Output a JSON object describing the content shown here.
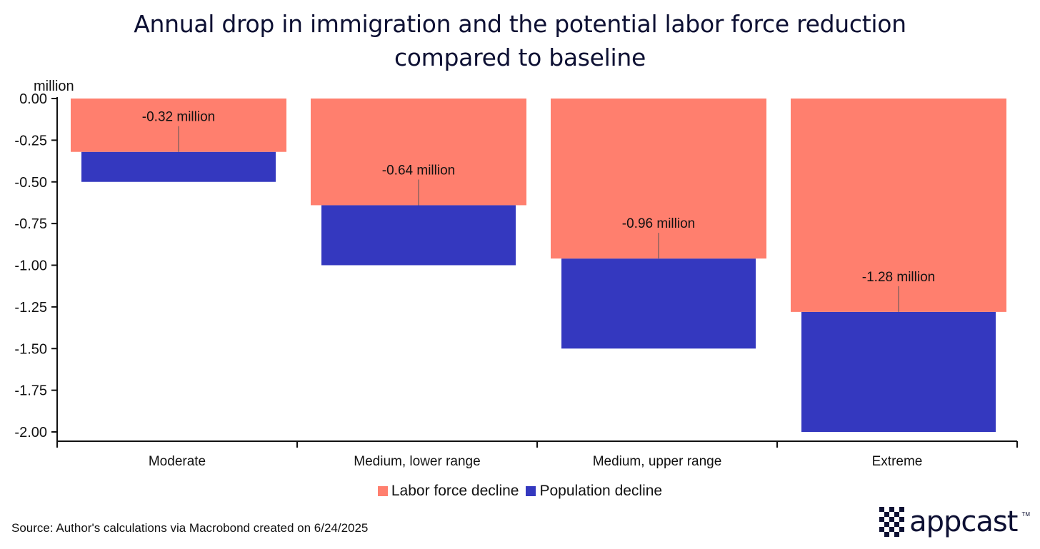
{
  "chart_data": {
    "type": "bar",
    "title_lines": [
      "Annual drop in immigration and the potential labor force reduction",
      "compared to baseline"
    ],
    "ylabel": "million",
    "ylim": [
      -2.0,
      0.0
    ],
    "yticks": [
      "0.00",
      "-0.25",
      "-0.50",
      "-0.75",
      "-1.00",
      "-1.25",
      "-1.50",
      "-1.75",
      "-2.00"
    ],
    "ytick_values": [
      0,
      -0.25,
      -0.5,
      -0.75,
      -1.0,
      -1.25,
      -1.5,
      -1.75,
      -2.0
    ],
    "categories": [
      "Moderate",
      "Medium, lower range",
      "Medium, upper range",
      "Extreme"
    ],
    "series": [
      {
        "name": "Labor force decline",
        "color": "#ff7f6e",
        "values": [
          -0.32,
          -0.64,
          -0.96,
          -1.28
        ]
      },
      {
        "name": "Population decline",
        "color": "#3438bf",
        "values": [
          -0.5,
          -1.0,
          -1.5,
          -2.0
        ]
      }
    ],
    "data_labels": [
      "-0.32 million",
      "-0.64 million",
      "-0.96 million",
      "-1.28 million"
    ],
    "legend_position": "bottom",
    "grid": false
  },
  "source": "Source: Author's calculations via Macrobond created on 6/24/2025",
  "logo": {
    "text": "appcast",
    "tm": "TM"
  }
}
